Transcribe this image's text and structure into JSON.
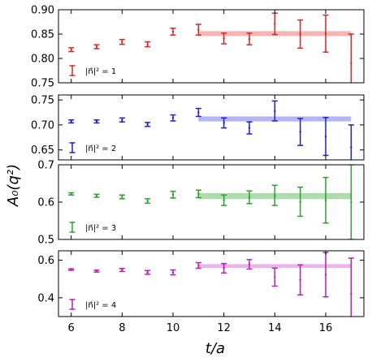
{
  "chart_data": {
    "type": "scatter",
    "xlabel": "t/a",
    "ylabel": "A₀(q²)",
    "x_ticks": [
      6,
      8,
      10,
      12,
      14,
      16
    ],
    "xlim": [
      5.5,
      17.5
    ],
    "panels": [
      {
        "legend": "|n⃗|² = 1",
        "color": "#d62728",
        "band_color": "#f4a6a6",
        "ylim": [
          0.75,
          0.9
        ],
        "y_ticks": [
          "0.75",
          "0.80",
          "0.85",
          "0.90"
        ],
        "x": [
          6,
          7,
          8,
          9,
          10,
          11,
          12,
          13,
          14,
          15,
          16,
          17
        ],
        "y": [
          0.818,
          0.824,
          0.834,
          0.829,
          0.855,
          0.859,
          0.841,
          0.84,
          0.871,
          0.85,
          0.851,
          0.79
        ],
        "err": [
          0.004,
          0.004,
          0.005,
          0.005,
          0.007,
          0.011,
          0.011,
          0.012,
          0.022,
          0.029,
          0.038,
          0.06
        ],
        "fit": {
          "x_start": 11,
          "x_end": 17,
          "value": 0.851,
          "error": 0.005
        }
      },
      {
        "legend": "|n⃗|² = 2",
        "color": "#1f1fcc",
        "band_color": "#a8a8f4",
        "ylim": [
          0.63,
          0.76
        ],
        "y_ticks": [
          "0.65",
          "0.70",
          "0.75"
        ],
        "x": [
          6,
          7,
          8,
          9,
          10,
          11,
          12,
          13,
          14,
          15,
          16,
          17
        ],
        "y": [
          0.707,
          0.707,
          0.71,
          0.701,
          0.714,
          0.725,
          0.704,
          0.694,
          0.728,
          0.686,
          0.677,
          0.655
        ],
        "err": [
          0.003,
          0.003,
          0.004,
          0.004,
          0.006,
          0.008,
          0.01,
          0.012,
          0.02,
          0.027,
          0.038,
          0.045
        ],
        "fit": {
          "x_start": 11,
          "x_end": 17,
          "value": 0.712,
          "error": 0.005
        }
      },
      {
        "legend": "|n⃗|² = 3",
        "color": "#2ca02c",
        "band_color": "#9fd69f",
        "ylim": [
          0.5,
          0.7
        ],
        "y_ticks": [
          "0.5",
          "0.6",
          "0.7"
        ],
        "x": [
          6,
          7,
          8,
          9,
          10,
          11,
          12,
          13,
          14,
          15,
          16,
          17
        ],
        "y": [
          0.622,
          0.617,
          0.614,
          0.603,
          0.62,
          0.622,
          0.605,
          0.613,
          0.618,
          0.601,
          0.605,
          0.6
        ],
        "err": [
          0.003,
          0.004,
          0.005,
          0.006,
          0.009,
          0.01,
          0.014,
          0.017,
          0.027,
          0.039,
          0.061,
          0.1
        ],
        "fit": {
          "x_start": 11,
          "x_end": 17,
          "value": 0.616,
          "error": 0.008
        }
      },
      {
        "legend": "|n⃗|² = 4",
        "color": "#b61fb6",
        "band_color": "#e7a4e7",
        "ylim": [
          0.3,
          0.65
        ],
        "y_ticks": [
          "0.4",
          "0.6"
        ],
        "x": [
          6,
          7,
          8,
          9,
          10,
          11,
          12,
          13,
          14,
          15,
          16,
          17
        ],
        "y": [
          0.55,
          0.542,
          0.548,
          0.535,
          0.535,
          0.572,
          0.557,
          0.578,
          0.51,
          0.495,
          0.523,
          0.421
        ],
        "err": [
          0.004,
          0.005,
          0.008,
          0.01,
          0.013,
          0.015,
          0.025,
          0.025,
          0.048,
          0.08,
          0.118,
          0.19
        ],
        "fit": {
          "x_start": 11,
          "x_end": 17,
          "value": 0.569,
          "error": 0.01
        }
      }
    ]
  }
}
